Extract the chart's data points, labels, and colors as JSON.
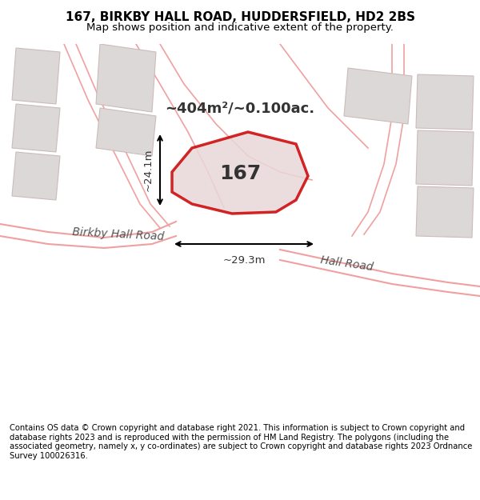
{
  "title": "167, BIRKBY HALL ROAD, HUDDERSFIELD, HD2 2BS",
  "subtitle": "Map shows position and indicative extent of the property.",
  "footer": "Contains OS data © Crown copyright and database right 2021. This information is subject to Crown copyright and database rights 2023 and is reproduced with the permission of HM Land Registry. The polygons (including the associated geometry, namely x, y co-ordinates) are subject to Crown copyright and database rights 2023 Ordnance Survey 100026316.",
  "area_label": "~404m²/~0.100ac.",
  "property_number": "167",
  "dim_width": "~29.3m",
  "dim_height": "~24.1m",
  "road_label_1": "Birkby Hall Road",
  "road_label_2": "Hall Road",
  "bg_color": "#f5f0f0",
  "map_bg": "#f5f0f0",
  "property_fill": "#e8e0e0",
  "property_outline": "#cc0000",
  "road_line_color": "#f0a0a0",
  "building_fill": "#e0d8d8",
  "building_outline": "#d0c8c8",
  "title_color": "#000000",
  "footer_color": "#000000"
}
